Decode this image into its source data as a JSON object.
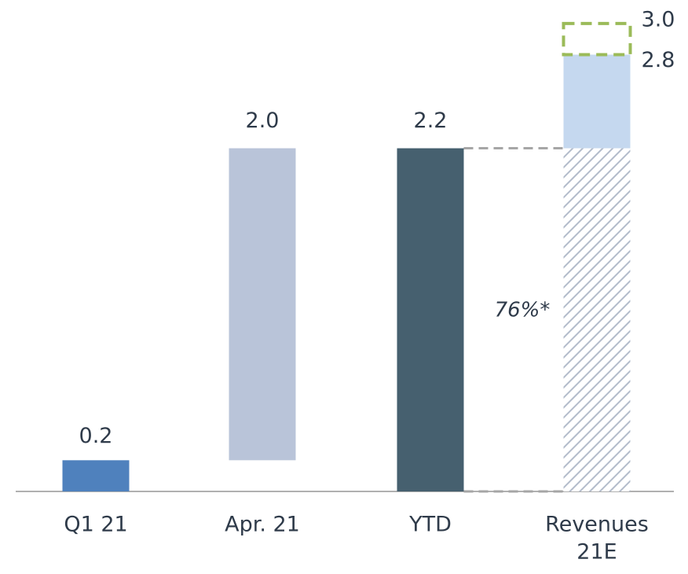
{
  "chart_data": {
    "type": "waterfall",
    "categories": [
      "Q1 21",
      "Apr. 21",
      "YTD",
      [
        "Revenues",
        "21E"
      ]
    ],
    "values": [
      0.2,
      2.0,
      2.2,
      2.8
    ],
    "value_labels": [
      "0.2",
      "2.0",
      "2.2",
      "2.8"
    ],
    "range_high": 3.0,
    "range_high_label": "3.0",
    "colors": [
      "#4f81bd",
      "#b9c4d9",
      "#46606f",
      "#c5d8ef"
    ],
    "hatch_color": "#b3bccb",
    "range_color": "#9bbb59",
    "annotation": "76%*",
    "ylim": [
      0,
      3.1
    ]
  }
}
